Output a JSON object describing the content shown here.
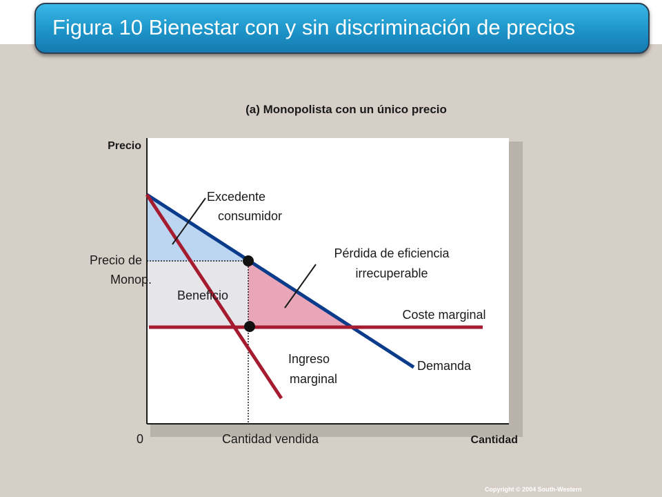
{
  "title": "Figura 10 Bienestar con y sin discriminación de precios",
  "subtitle": "(a) Monopolista con un único precio",
  "y_axis_label": "Precio",
  "x_axis_label": "Cantidad",
  "origin_label": "0",
  "labels": {
    "price_line1": "Precio de",
    "price_line2": "Monop.",
    "quantity_sold": "Cantidad vendida",
    "consumer_surplus_line1": "Excedente",
    "consumer_surplus_line2": "consumidor",
    "deadweight_loss_line1": "Pérdida de eficiencia",
    "deadweight_loss_line2": "irrecuperable",
    "profit": "Beneficio",
    "marginal_cost": "Coste marginal",
    "marginal_revenue_line1": "Ingreso",
    "marginal_revenue_line2": "marginal",
    "demand": "Demanda"
  },
  "colors": {
    "demand": "#0b3c8c",
    "marginal_revenue": "#a51c30",
    "marginal_cost": "#a51c30",
    "consumer_surplus": "#bcd6f2",
    "profit": "#e6e6ea",
    "deadweight_loss": "#e8a6b8",
    "title_bar": "#1d94c8",
    "background": "#d6cfc7"
  },
  "copyright": "Copyright © 2004 South-Western"
}
